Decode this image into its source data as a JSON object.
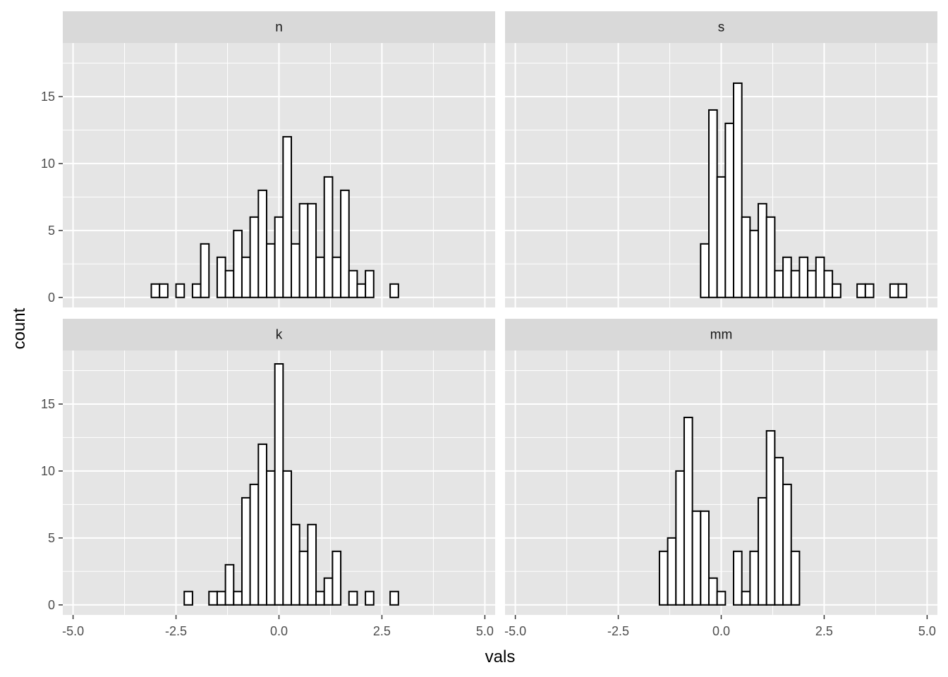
{
  "chart_data": {
    "type": "bar",
    "subtype": "faceted-histogram",
    "xlabel": "vals",
    "ylabel": "count",
    "xlim": [
      -5.25,
      5.25
    ],
    "ylim": [
      -0.75,
      19
    ],
    "x_ticks": [
      -5.0,
      -2.5,
      0.0,
      2.5,
      5.0
    ],
    "x_tick_labels": [
      "-5.0",
      "-2.5",
      "0.0",
      "2.5",
      "5.0"
    ],
    "y_ticks": [
      0,
      5,
      10,
      15
    ],
    "y_tick_labels": [
      "0",
      "5",
      "10",
      "15"
    ],
    "grid": true,
    "bar_fill": "#ffffff",
    "bar_outline": "#000000",
    "panel_background": "#e5e5e5",
    "strip_background": "#d9d9d9",
    "grid_color": "#ffffff",
    "bin_start": -3.1,
    "bin_width": 0.2,
    "facets": [
      {
        "label": "n",
        "counts": [
          1,
          1,
          0,
          1,
          0,
          1,
          4,
          0,
          3,
          2,
          5,
          3,
          6,
          8,
          4,
          6,
          12,
          4,
          7,
          7,
          3,
          9,
          3,
          8,
          2,
          1,
          2,
          0,
          0,
          1,
          0,
          0,
          0,
          0,
          0,
          0,
          0,
          0
        ]
      },
      {
        "label": "s",
        "counts": [
          0,
          0,
          0,
          0,
          0,
          0,
          0,
          0,
          0,
          0,
          0,
          0,
          0,
          4,
          14,
          9,
          13,
          16,
          6,
          5,
          7,
          6,
          2,
          3,
          2,
          3,
          2,
          3,
          2,
          1,
          0,
          0,
          1,
          1,
          0,
          0,
          1,
          1
        ]
      },
      {
        "label": "k",
        "counts": [
          0,
          0,
          0,
          0,
          1,
          0,
          0,
          1,
          1,
          3,
          1,
          8,
          9,
          12,
          10,
          18,
          10,
          6,
          4,
          6,
          1,
          2,
          4,
          0,
          1,
          0,
          1,
          0,
          0,
          1,
          0,
          0,
          0,
          0,
          0,
          0,
          0,
          0
        ]
      },
      {
        "label": "mm",
        "counts": [
          0,
          0,
          0,
          0,
          0,
          0,
          0,
          0,
          4,
          5,
          10,
          14,
          7,
          7,
          2,
          1,
          0,
          4,
          1,
          4,
          8,
          13,
          11,
          9,
          4,
          0,
          0,
          0,
          0,
          0,
          0,
          0,
          0,
          0,
          0,
          0,
          0,
          0
        ]
      }
    ]
  }
}
